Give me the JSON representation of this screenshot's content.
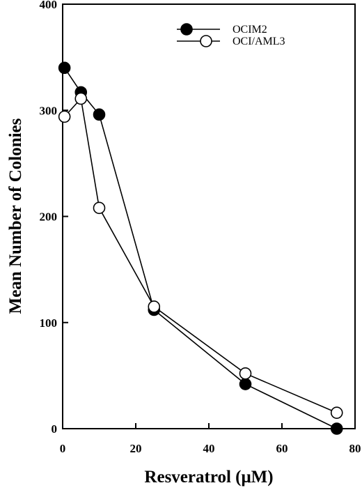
{
  "chart_data": {
    "type": "line",
    "xlabel": "Resveratrol (μM)",
    "ylabel": "Mean Number of Colonies",
    "xlim": [
      0,
      80
    ],
    "ylim": [
      0,
      400
    ],
    "x_ticks": [
      0,
      20,
      40,
      60,
      80
    ],
    "y_ticks": [
      0,
      100,
      200,
      300,
      400
    ],
    "grid": false,
    "legend_position": "top-right",
    "series": [
      {
        "name": "OCIM2",
        "marker": "filled-circle",
        "color": "#000000",
        "x": [
          0.5,
          5,
          10,
          25,
          50,
          75
        ],
        "y": [
          340,
          317,
          296,
          112,
          42,
          0
        ]
      },
      {
        "name": "OCI/AML3",
        "marker": "open-circle",
        "color": "#000000",
        "x": [
          0.5,
          5,
          10,
          25,
          50,
          75
        ],
        "y": [
          294,
          311,
          208,
          115,
          52,
          15
        ]
      }
    ]
  }
}
